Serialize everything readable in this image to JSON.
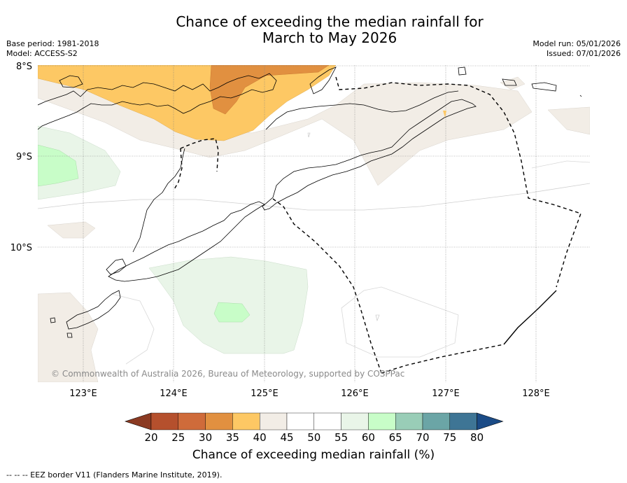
{
  "title": {
    "line1": "Chance of exceeding the median rainfall for",
    "line2": "March to May 2026"
  },
  "meta": {
    "base_period": "Base period: 1981-2018",
    "model": "Model: ACCESS-S2",
    "model_run": "Model run: 05/01/2026",
    "issued": "Issued: 07/01/2026"
  },
  "map": {
    "lat_labels": [
      "8°S",
      "9°S",
      "10°S"
    ],
    "lon_labels": [
      "123°E",
      "124°E",
      "125°E",
      "126°E",
      "127°E",
      "128°E"
    ],
    "copyright": "© Commonwealth of Australia 2026, Bureau of Meteorology, supported by COSPPac"
  },
  "colorbar": {
    "ticks": [
      "20",
      "25",
      "30",
      "35",
      "40",
      "45",
      "50",
      "55",
      "60",
      "65",
      "70",
      "75",
      "80"
    ],
    "colors": {
      "below20": "#8b3a22",
      "c20_25": "#b5502d",
      "c25_30": "#cf6b3a",
      "c30_35": "#e19040",
      "c35_40": "#fdc864",
      "c40_45": "#f2ede6",
      "c45_50": "#ffffff",
      "c50_55": "#ffffff",
      "c55_60": "#e9f5e8",
      "c60_65": "#c8fdc8",
      "c65_70": "#99cdb7",
      "c70_75": "#6ba5a6",
      "c75_80": "#3e7595",
      "above80": "#1b4b86"
    },
    "label": "Chance of exceeding median rainfall (%)"
  },
  "footer": {
    "legend": "--  --  -- EEZ border V11 (Flanders Marine Institute, 2019)."
  }
}
